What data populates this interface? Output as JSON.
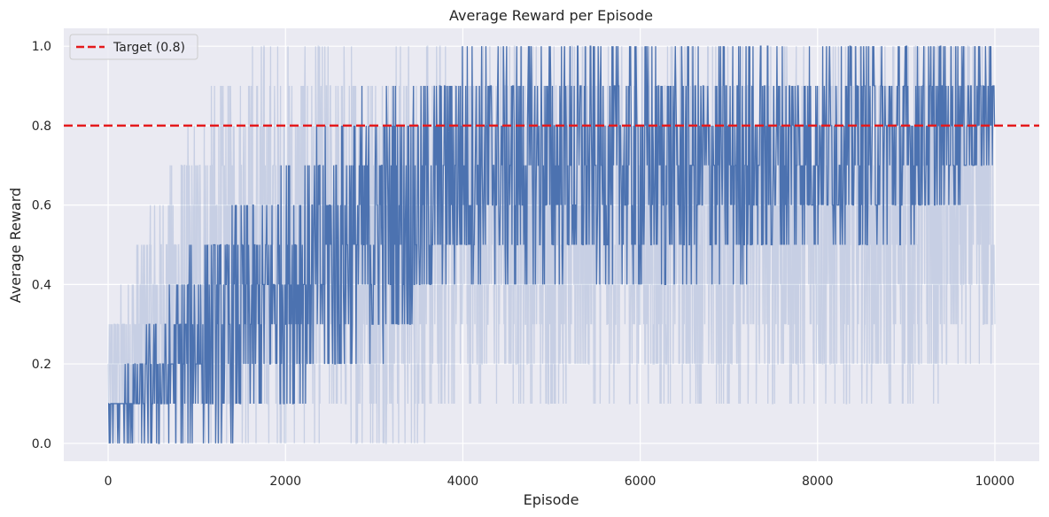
{
  "chart_data": {
    "type": "line",
    "title": "Average Reward per Episode",
    "xlabel": "Episode",
    "ylabel": "Average Reward",
    "xlim": [
      -500,
      10500
    ],
    "ylim": [
      -0.045,
      1.045
    ],
    "xticks": [
      0,
      2000,
      4000,
      6000,
      8000,
      10000
    ],
    "yticks": [
      0.0,
      0.2,
      0.4,
      0.6,
      0.8,
      1.0
    ],
    "xtick_labels": [
      "0",
      "2000",
      "4000",
      "6000",
      "8000",
      "10000"
    ],
    "ytick_labels": [
      "0.0",
      "0.2",
      "0.4",
      "0.6",
      "0.8",
      "1.0"
    ],
    "grid": true,
    "legend_position": "top-left",
    "episodes": 10000,
    "series": [
      {
        "role": "raw",
        "color": "#4c72b0",
        "opacity": 0.22,
        "envelope": {
          "x": [
            0,
            500,
            1000,
            1500,
            2000,
            2500,
            3000,
            3500,
            4000,
            5000,
            6000,
            7000,
            8000,
            9000,
            10000
          ],
          "low": [
            0.0,
            0.0,
            0.0,
            0.0,
            0.0,
            0.0,
            0.0,
            0.0,
            0.1,
            0.1,
            0.1,
            0.1,
            0.1,
            0.1,
            0.2
          ],
          "high": [
            0.3,
            0.6,
            0.8,
            1.0,
            1.0,
            1.0,
            1.0,
            1.0,
            1.0,
            1.0,
            1.0,
            1.0,
            1.0,
            1.0,
            1.0
          ]
        }
      },
      {
        "role": "moving-average",
        "color": "#4c72b0",
        "opacity": 1.0,
        "envelope": {
          "x": [
            0,
            500,
            1000,
            1500,
            2000,
            2500,
            3000,
            3500,
            4000,
            5000,
            6000,
            7000,
            8000,
            9000,
            10000
          ],
          "low": [
            0.0,
            0.0,
            0.0,
            0.0,
            0.1,
            0.1,
            0.2,
            0.3,
            0.4,
            0.4,
            0.4,
            0.4,
            0.5,
            0.5,
            0.7
          ],
          "high": [
            0.1,
            0.3,
            0.5,
            0.6,
            0.7,
            0.8,
            0.9,
            0.9,
            1.0,
            1.0,
            1.0,
            1.0,
            1.0,
            1.0,
            1.0
          ]
        }
      }
    ],
    "reference_line": {
      "label": "Target (0.8)",
      "y": 0.8,
      "color": "#e41a1c",
      "style": "dashed"
    },
    "colors": {
      "plot_background": "#eaeaf2",
      "grid": "#ffffff",
      "text": "#262626"
    }
  }
}
